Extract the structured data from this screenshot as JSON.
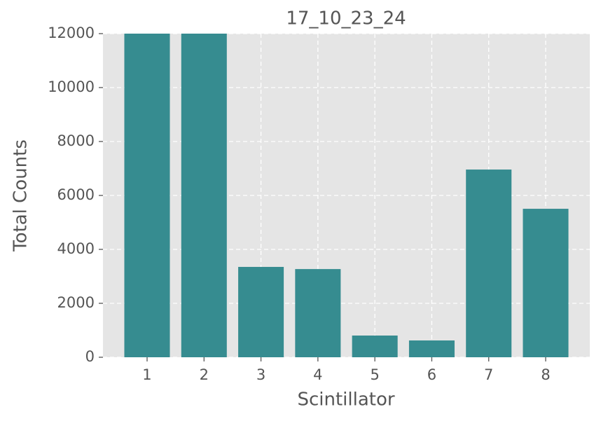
{
  "chart_data": {
    "type": "bar",
    "title": "17_10_23_24",
    "x_label": "Scintillator",
    "y_label": "Total Counts",
    "categories": [
      "1",
      "2",
      "3",
      "4",
      "5",
      "6",
      "7",
      "8"
    ],
    "values": [
      12000,
      12000,
      3350,
      3270,
      805,
      623,
      6960,
      5505
    ],
    "color": "#368c90",
    "ylim": [
      0,
      12000
    ],
    "yticks": [
      0,
      2000,
      4000,
      6000,
      8000,
      10000,
      12000
    ],
    "grid": true
  }
}
